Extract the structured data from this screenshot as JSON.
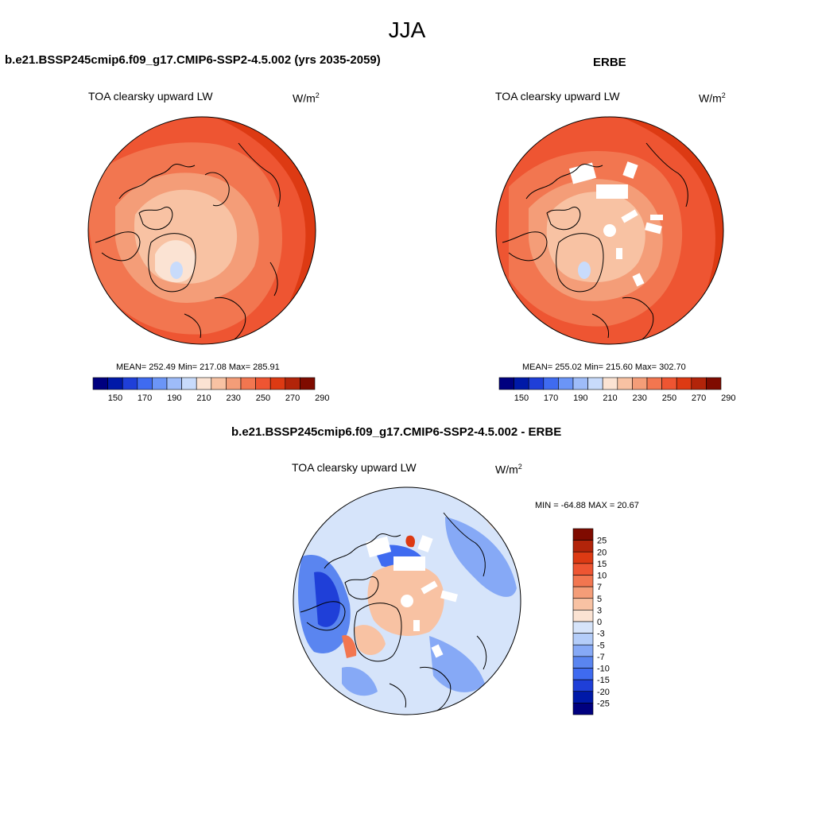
{
  "season": "JJA",
  "panels": {
    "model": {
      "case": "b.e21.BSSP245cmip6.f09_g17.CMIP6-SSP2-4.5.002 (yrs 2035-2059)",
      "variable": "TOA clearsky upward LW",
      "units_base": "W/m",
      "units_exp": "2",
      "stats": "MEAN= 252.49  Min= 217.08  Max= 285.91"
    },
    "obs": {
      "case": "ERBE",
      "variable": "TOA clearsky upward LW",
      "units_base": "W/m",
      "units_exp": "2",
      "stats": "MEAN= 255.02  Min= 215.60  Max= 302.70"
    },
    "diff": {
      "case": "b.e21.BSSP245cmip6.f09_g17.CMIP6-SSP2-4.5.002 - ERBE",
      "variable": "TOA clearsky upward LW",
      "units_base": "W/m",
      "units_exp": "2",
      "stats": "MIN = -64.88 MAX =  20.67"
    }
  },
  "abs_colorbar": {
    "labels": [
      "150",
      "170",
      "190",
      "210",
      "230",
      "250",
      "270",
      "290"
    ],
    "colors": [
      "#00007f",
      "#0019a8",
      "#1f3fd8",
      "#3f6bf0",
      "#6b95f7",
      "#9ebcf9",
      "#c8dbfb",
      "#fbe3d3",
      "#f8c2a3",
      "#f49d78",
      "#f27650",
      "#ee5532",
      "#dd3a13",
      "#b2240a",
      "#7f0b00"
    ]
  },
  "diff_colorbar": {
    "labels": [
      "25",
      "20",
      "15",
      "10",
      "7",
      "5",
      "3",
      "0",
      "-3",
      "-5",
      "-7",
      "-10",
      "-15",
      "-20",
      "-25"
    ],
    "colors": [
      "#7f0b00",
      "#b2240a",
      "#dd3a13",
      "#ee5532",
      "#f27650",
      "#f49d78",
      "#f8c2a3",
      "#fbe3d3",
      "#d6e4fa",
      "#b4cdf9",
      "#86a9f6",
      "#5a85f0",
      "#3f6bf0",
      "#1f3fd8",
      "#0019a8",
      "#00007f"
    ]
  }
}
